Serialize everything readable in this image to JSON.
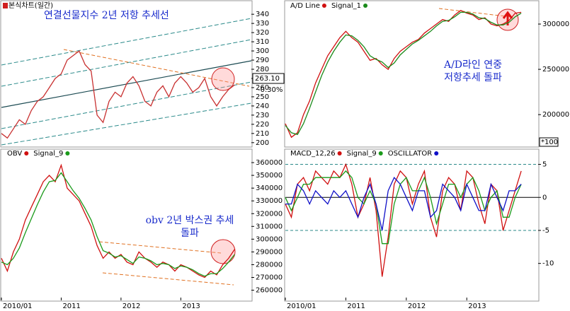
{
  "chart_data": [
    {
      "type": "line",
      "title": "본식차트(일간)",
      "annotation": [
        "연결선물지수 2년 저항 추세선"
      ],
      "price_tag": "263.10",
      "change": "-0.30%",
      "x": [
        2010.0,
        2010.1,
        2010.2,
        2010.3,
        2010.4,
        2010.5,
        2010.6,
        2010.7,
        2010.8,
        2010.9,
        2011.0,
        2011.1,
        2011.2,
        2011.3,
        2011.4,
        2011.5,
        2011.6,
        2011.7,
        2011.8,
        2011.9,
        2012.0,
        2012.1,
        2012.2,
        2012.3,
        2012.4,
        2012.5,
        2012.6,
        2012.7,
        2012.8,
        2012.9,
        2013.0,
        2013.1,
        2013.2,
        2013.3,
        2013.4,
        2013.5,
        2013.6,
        2013.7,
        2013.8,
        2013.9
      ],
      "xlim": [
        2010,
        2014.18
      ],
      "series": [
        {
          "name": "본식차트",
          "color": "#c83030",
          "values": [
            210,
            205,
            215,
            225,
            220,
            235,
            245,
            250,
            260,
            270,
            275,
            290,
            295,
            300,
            285,
            278,
            230,
            222,
            245,
            255,
            250,
            265,
            272,
            262,
            245,
            240,
            255,
            262,
            250,
            265,
            272,
            265,
            255,
            260,
            270,
            250,
            240,
            250,
            258,
            263
          ]
        }
      ],
      "ylim": [
        196,
        354
      ],
      "yticks": [
        200,
        210,
        220,
        230,
        240,
        250,
        260,
        270,
        280,
        290,
        300,
        310,
        320,
        330,
        340
      ]
    },
    {
      "type": "line",
      "annotation": [
        "A/D라인 연중",
        "저항추세 돌파"
      ],
      "unit_label": "*100",
      "x": [
        2010.0,
        2010.1,
        2010.2,
        2010.3,
        2010.4,
        2010.5,
        2010.6,
        2010.7,
        2010.8,
        2010.9,
        2011.0,
        2011.1,
        2011.2,
        2011.3,
        2011.4,
        2011.5,
        2011.6,
        2011.7,
        2011.8,
        2011.9,
        2012.0,
        2012.1,
        2012.2,
        2012.3,
        2012.4,
        2012.5,
        2012.6,
        2012.7,
        2012.8,
        2012.9,
        2013.0,
        2013.1,
        2013.2,
        2013.3,
        2013.4,
        2013.5,
        2013.6,
        2013.7,
        2013.8,
        2013.9
      ],
      "xlim": [
        2010,
        2014.18
      ],
      "series": [
        {
          "name": "A/D Line",
          "color": "#d01010",
          "values": [
            190000,
            175000,
            180000,
            200000,
            215000,
            235000,
            250000,
            265000,
            275000,
            285000,
            292000,
            285000,
            280000,
            270000,
            260000,
            262000,
            255000,
            250000,
            262000,
            270000,
            275000,
            280000,
            283000,
            290000,
            295000,
            300000,
            305000,
            303000,
            310000,
            315000,
            312000,
            310000,
            305000,
            307000,
            300000,
            298000,
            300000,
            304000,
            312000,
            313000
          ]
        },
        {
          "name": "Signal_1",
          "color": "#1a8a1a",
          "values": [
            188000,
            180000,
            178000,
            190000,
            207000,
            225000,
            243000,
            258000,
            270000,
            280000,
            288000,
            287000,
            282000,
            275000,
            265000,
            261000,
            258000,
            252000,
            257000,
            266000,
            272000,
            278000,
            282000,
            287000,
            292000,
            298000,
            303000,
            304000,
            308000,
            313000,
            313000,
            311000,
            307000,
            306000,
            302000,
            299000,
            299000,
            302000,
            308000,
            312000
          ]
        }
      ],
      "ylim": [
        165000,
        325000
      ],
      "yticks": [
        200000,
        250000,
        300000
      ]
    },
    {
      "type": "line",
      "annotation": [
        "obv 2년 박스권 추세",
        "돌파"
      ],
      "x": [
        2010.0,
        2010.1,
        2010.2,
        2010.3,
        2010.4,
        2010.5,
        2010.6,
        2010.7,
        2010.8,
        2010.9,
        2011.0,
        2011.1,
        2011.2,
        2011.3,
        2011.4,
        2011.5,
        2011.6,
        2011.7,
        2011.8,
        2011.9,
        2012.0,
        2012.1,
        2012.2,
        2012.3,
        2012.4,
        2012.5,
        2012.6,
        2012.7,
        2012.8,
        2012.9,
        2013.0,
        2013.1,
        2013.2,
        2013.3,
        2013.4,
        2013.5,
        2013.6,
        2013.7,
        2013.8,
        2013.9
      ],
      "xlim": [
        2010,
        2014.18
      ],
      "xticks": [
        {
          "value": 2010,
          "label": "2010/01"
        },
        2011,
        2012,
        2013
      ],
      "series": [
        {
          "name": "OBV",
          "color": "#d01010",
          "values": [
            285000,
            275000,
            290000,
            300000,
            315000,
            325000,
            335000,
            345000,
            350000,
            345000,
            358000,
            340000,
            335000,
            330000,
            320000,
            310000,
            295000,
            285000,
            290000,
            285000,
            288000,
            282000,
            280000,
            290000,
            285000,
            282000,
            278000,
            282000,
            280000,
            275000,
            280000,
            278000,
            275000,
            272000,
            270000,
            275000,
            272000,
            280000,
            285000,
            292000
          ]
        },
        {
          "name": "Signal_9",
          "color": "#1a9a1a",
          "values": [
            282000,
            280000,
            285000,
            293000,
            305000,
            316000,
            327000,
            337000,
            345000,
            346000,
            352000,
            345000,
            338000,
            332000,
            324000,
            315000,
            302000,
            291000,
            289000,
            286000,
            287000,
            284000,
            281000,
            286000,
            285000,
            283000,
            280000,
            281000,
            280000,
            277000,
            279000,
            278000,
            276000,
            273000,
            271000,
            273000,
            273000,
            277000,
            282000,
            288000
          ]
        }
      ],
      "ylim": [
        252000,
        370000
      ],
      "yticks": [
        260000,
        270000,
        280000,
        290000,
        300000,
        310000,
        320000,
        330000,
        340000,
        350000,
        360000
      ]
    },
    {
      "type": "line",
      "x": [
        2010.0,
        2010.1,
        2010.2,
        2010.3,
        2010.4,
        2010.5,
        2010.6,
        2010.7,
        2010.8,
        2010.9,
        2011.0,
        2011.1,
        2011.2,
        2011.3,
        2011.4,
        2011.5,
        2011.6,
        2011.7,
        2011.8,
        2011.9,
        2012.0,
        2012.1,
        2012.2,
        2012.3,
        2012.4,
        2012.5,
        2012.6,
        2012.7,
        2012.8,
        2012.9,
        2013.0,
        2013.1,
        2013.2,
        2013.3,
        2013.4,
        2013.5,
        2013.6,
        2013.7,
        2013.8,
        2013.9
      ],
      "xlim": [
        2010,
        2014.18
      ],
      "xticks": [
        {
          "value": 2010,
          "label": "2010/01"
        },
        2011,
        2012,
        2013
      ],
      "series": [
        {
          "name": "MACD_12,26",
          "color": "#d01010",
          "values": [
            -1,
            -3,
            2,
            3,
            1,
            4,
            3,
            2,
            4,
            3,
            5,
            2,
            -3,
            -1,
            3,
            -2,
            -12,
            -6,
            2,
            4,
            3,
            -1,
            2,
            4,
            -3,
            -6,
            1,
            3,
            2,
            -2,
            4,
            3,
            -1,
            -4,
            2,
            1,
            -5,
            -2,
            1,
            4
          ]
        },
        {
          "name": "Signal_9",
          "color": "#1a9a1a",
          "values": [
            0,
            -2,
            0,
            2,
            2,
            3,
            3,
            3,
            3,
            3,
            4,
            3,
            0,
            -1,
            1,
            -1,
            -7,
            -7,
            -1,
            2,
            3,
            1,
            1,
            3,
            0,
            -4,
            -1,
            2,
            2,
            0,
            2,
            3,
            1,
            -2,
            0,
            1,
            -3,
            -3,
            0,
            2
          ]
        },
        {
          "name": "OSCILLATOR",
          "color": "#1010c8",
          "values": [
            -1,
            -1,
            2,
            1,
            -1,
            1,
            0,
            -1,
            1,
            0,
            1,
            -1,
            -3,
            0,
            2,
            -1,
            -5,
            1,
            3,
            2,
            0,
            -2,
            1,
            1,
            -3,
            -2,
            2,
            1,
            0,
            -2,
            2,
            0,
            -2,
            -2,
            2,
            0,
            -2,
            1,
            1,
            2
          ]
        }
      ],
      "reference_lines": [
        5,
        0,
        -5
      ],
      "ylim": [
        -15.6,
        7.2
      ],
      "yticks": [
        5,
        0,
        -5,
        -10
      ]
    }
  ]
}
